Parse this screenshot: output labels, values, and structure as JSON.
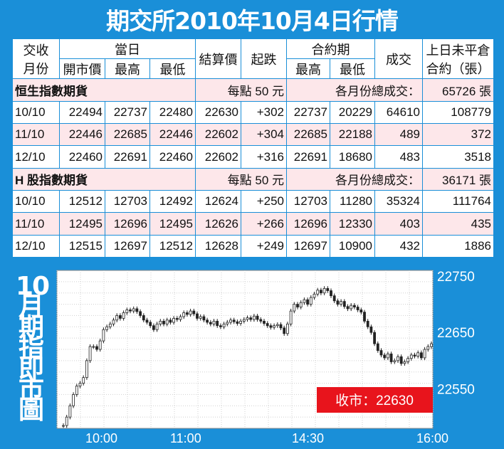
{
  "title": "期交所2010年10月4日行情",
  "table": {
    "headers": {
      "month": [
        "交收",
        "月份"
      ],
      "day": "當日",
      "open": "開市價",
      "high": "最高",
      "low": "最低",
      "settle": "結算價",
      "change": "起跌",
      "contract": "合約期",
      "c_high": "最高",
      "c_low": "最低",
      "volume": "成交",
      "oi": [
        "上日未平倉",
        "合約（張）"
      ]
    },
    "sections": [
      {
        "name": "恒生指數期貨",
        "per_point": "每點 50 元",
        "total_label": "各月份總成交：",
        "total": "65726 張",
        "rows": [
          {
            "month": "10/10",
            "open": "22494",
            "high": "22737",
            "low": "22480",
            "settle": "22630",
            "change": "+302",
            "c_high": "22737",
            "c_low": "20229",
            "volume": "64610",
            "oi": "108779"
          },
          {
            "month": "11/10",
            "open": "22446",
            "high": "22685",
            "low": "22446",
            "settle": "22602",
            "change": "+304",
            "c_high": "22685",
            "c_low": "22188",
            "volume": "489",
            "oi": "372"
          },
          {
            "month": "12/10",
            "open": "22460",
            "high": "22691",
            "low": "22460",
            "settle": "22602",
            "change": "+316",
            "c_high": "22691",
            "c_low": "18680",
            "volume": "483",
            "oi": "3518"
          }
        ]
      },
      {
        "name": "H 股指數期貨",
        "per_point": "每點 50 元",
        "total_label": "各月份總成交：",
        "total": "36171 張",
        "rows": [
          {
            "month": "10/10",
            "open": "12512",
            "high": "12703",
            "low": "12492",
            "settle": "12624",
            "change": "+250",
            "c_high": "12703",
            "c_low": "11280",
            "volume": "35324",
            "oi": "111764"
          },
          {
            "month": "11/10",
            "open": "12495",
            "high": "12696",
            "low": "12495",
            "settle": "12626",
            "change": "+266",
            "c_high": "12696",
            "c_low": "12330",
            "volume": "403",
            "oi": "435"
          },
          {
            "month": "12/10",
            "open": "12515",
            "high": "12697",
            "low": "12512",
            "settle": "12628",
            "change": "+249",
            "c_high": "12697",
            "c_low": "10900",
            "volume": "432",
            "oi": "1886"
          }
        ]
      }
    ]
  },
  "side_label": [
    "10",
    "月",
    "期",
    "指",
    "即",
    "市",
    "圖"
  ],
  "colors": {
    "background": "#1a8fd8",
    "pink_row": "#fde7ea",
    "close_badge": "#e8141c",
    "candle": "#222222"
  },
  "chart_data": {
    "type": "line",
    "x_ticks": [
      "10:00",
      "11:00",
      "14:30",
      "16:00"
    ],
    "y_ticks": [
      22750,
      22650,
      22550
    ],
    "ylim": [
      22480,
      22760
    ],
    "grid": true,
    "close_label": "收市：22630",
    "series": [
      {
        "values": [
          22485,
          22500,
          22520,
          22540,
          22555,
          22560,
          22570,
          22600,
          22625,
          22625,
          22620,
          22635,
          22655,
          22660,
          22665,
          22672,
          22680,
          22675,
          22685,
          22690,
          22688,
          22692,
          22687,
          22680,
          22672,
          22668,
          22662,
          22655,
          22665,
          22670,
          22665,
          22672,
          22668,
          22675,
          22673,
          22678,
          22685,
          22682,
          22688,
          22683,
          22675,
          22678,
          22672,
          22668,
          22665,
          22670,
          22662,
          22660,
          22665,
          22668,
          22672,
          22669,
          22666,
          22670,
          22673,
          22676,
          22673,
          22679,
          22673,
          22670,
          22666,
          22662,
          22659,
          22662,
          22664,
          22658,
          22648,
          22665,
          22688,
          22700,
          22695,
          22703,
          22708,
          22700,
          22712,
          22718,
          22725,
          22720,
          22728,
          22724,
          22715,
          22706,
          22700,
          22705,
          22696,
          22692,
          22698,
          22695,
          22690,
          22686,
          22670,
          22660,
          22650,
          22630,
          22618,
          22610,
          22605,
          22612,
          22598,
          22600,
          22607,
          22595,
          22598,
          22604,
          22610,
          22608,
          22614,
          22605,
          22620,
          22625,
          22630
        ]
      }
    ]
  }
}
